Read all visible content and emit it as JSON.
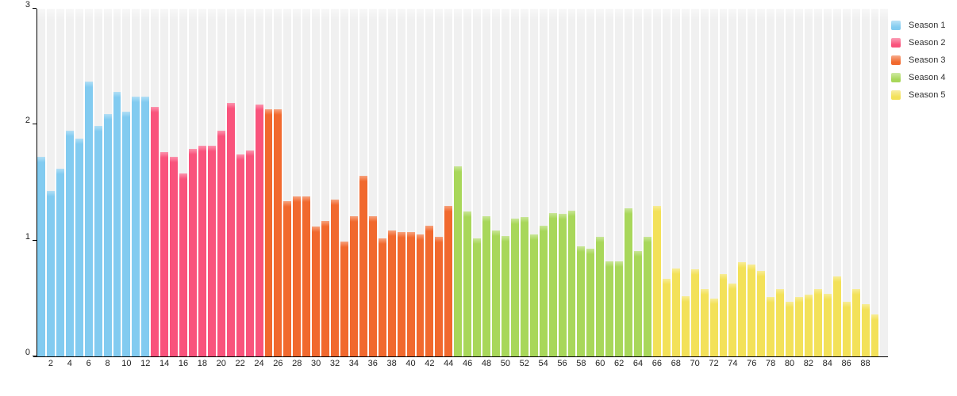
{
  "chart_data": {
    "type": "bar",
    "title": "",
    "xlabel": "",
    "ylabel": "",
    "ylim": [
      0,
      3
    ],
    "yticks": [
      "0",
      "1",
      "2",
      "3"
    ],
    "xticks": [
      "2",
      "4",
      "6",
      "8",
      "10",
      "12",
      "14",
      "16",
      "18",
      "20",
      "22",
      "24",
      "26",
      "28",
      "30",
      "32",
      "34",
      "36",
      "38",
      "40",
      "42",
      "44",
      "46",
      "48",
      "50",
      "52",
      "54",
      "56",
      "58",
      "60",
      "62",
      "64",
      "66",
      "68",
      "70",
      "72",
      "74",
      "76",
      "78",
      "80",
      "82",
      "84",
      "86",
      "88"
    ],
    "x_is_episode_number": true,
    "grid": "vertical-backdrop-stripes",
    "legend_position": "top-right",
    "backdrop_color": "#f0f0f0",
    "axis_color": "#000000",
    "tick_label_color": "#222222",
    "legend_text_color": "#333333",
    "trailing_empty_slots": 1,
    "series": [
      {
        "name": "Season 1",
        "color": "#82cbf0",
        "start_episode": 1,
        "values": [
          1.72,
          1.43,
          1.62,
          1.95,
          1.88,
          2.37,
          1.99,
          2.09,
          2.28,
          2.11,
          2.24,
          2.24
        ]
      },
      {
        "name": "Season 2",
        "color": "#f9537c",
        "start_episode": 13,
        "values": [
          2.15,
          1.76,
          1.72,
          1.58,
          1.79,
          1.82,
          1.82,
          1.95,
          2.19,
          1.74,
          1.78,
          2.17
        ]
      },
      {
        "name": "Season 3",
        "color": "#f1692e",
        "start_episode": 25,
        "values": [
          2.13,
          2.13,
          1.34,
          1.38,
          1.38,
          1.12,
          1.17,
          1.35,
          0.99,
          1.21,
          1.56,
          1.21,
          1.02,
          1.09,
          1.07,
          1.07,
          1.05,
          1.13,
          1.03,
          1.3
        ]
      },
      {
        "name": "Season 4",
        "color": "#a8d75a",
        "start_episode": 45,
        "values": [
          1.64,
          1.25,
          1.02,
          1.21,
          1.09,
          1.04,
          1.19,
          1.2,
          1.05,
          1.13,
          1.24,
          1.23,
          1.26,
          0.95,
          0.93,
          1.03,
          0.82,
          0.82,
          1.28,
          0.91,
          1.03
        ]
      },
      {
        "name": "Season 5",
        "color": "#f3e159",
        "start_episode": 66,
        "values": [
          1.3,
          0.67,
          0.76,
          0.52,
          0.75,
          0.58,
          0.5,
          0.71,
          0.63,
          0.81,
          0.79,
          0.74,
          0.51,
          0.58,
          0.47,
          0.51,
          0.53,
          0.58,
          0.54,
          0.69,
          0.47,
          0.58,
          0.45,
          0.36
        ]
      }
    ]
  }
}
